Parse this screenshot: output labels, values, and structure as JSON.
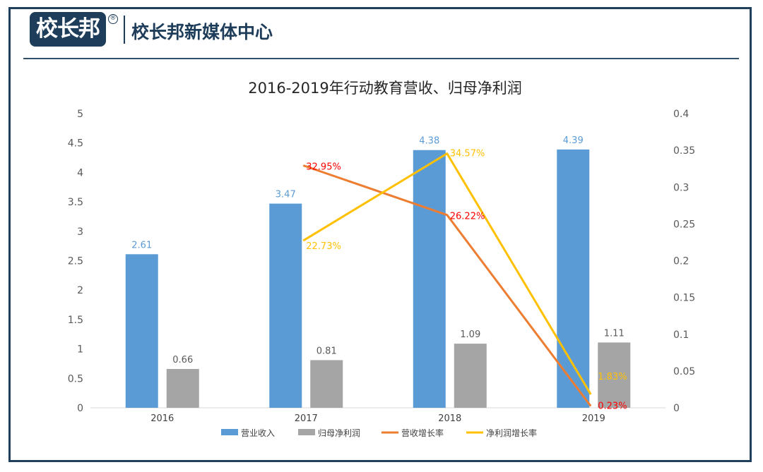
{
  "header": {
    "logo_text": "校长邦",
    "logo_mark": "®",
    "brand_name": "校长邦新媒体中心"
  },
  "colors": {
    "revenue": "#5b9bd5",
    "profit": "#a5a5a5",
    "revenue_growth": "#ed7d31",
    "profit_growth": "#ffc000",
    "growth_label_red": "#ff0000",
    "frame": "#1f3f5c"
  },
  "chart_data": {
    "type": "bar",
    "title": "2016-2019年行动教育营收、归母净利润",
    "categories": [
      "2016",
      "2017",
      "2018",
      "2019"
    ],
    "y_left": {
      "ylim": [
        0,
        5
      ],
      "ticks": [
        "0",
        "0.5",
        "1",
        "1.5",
        "2",
        "2.5",
        "3",
        "3.5",
        "4",
        "4.5",
        "5"
      ]
    },
    "y_right": {
      "ylim": [
        0,
        0.4
      ],
      "ticks": [
        "0",
        "0.05",
        "0.1",
        "0.15",
        "0.2",
        "0.25",
        "0.3",
        "0.35",
        "0.4"
      ]
    },
    "grid": false,
    "legend_position": "bottom",
    "series": [
      {
        "name": "营业收入",
        "type": "bar",
        "axis": "left",
        "values": [
          2.61,
          3.47,
          4.38,
          4.39
        ],
        "labels": [
          "2.61",
          "3.47",
          "4.38",
          "4.39"
        ]
      },
      {
        "name": "归母净利润",
        "type": "bar",
        "axis": "left",
        "values": [
          0.66,
          0.81,
          1.09,
          1.11
        ],
        "labels": [
          "0.66",
          "0.81",
          "1.09",
          "1.11"
        ]
      },
      {
        "name": "营收增长率",
        "type": "line",
        "axis": "right",
        "values": [
          null,
          0.3295,
          0.2622,
          0.0023
        ],
        "labels": [
          "",
          "32.95%",
          "26.22%",
          "0.23%"
        ]
      },
      {
        "name": "净利润增长率",
        "type": "line",
        "axis": "right",
        "values": [
          null,
          0.2273,
          0.3457,
          0.0183
        ],
        "labels": [
          "",
          "22.73%",
          "34.57%",
          "1.83%"
        ]
      }
    ]
  }
}
